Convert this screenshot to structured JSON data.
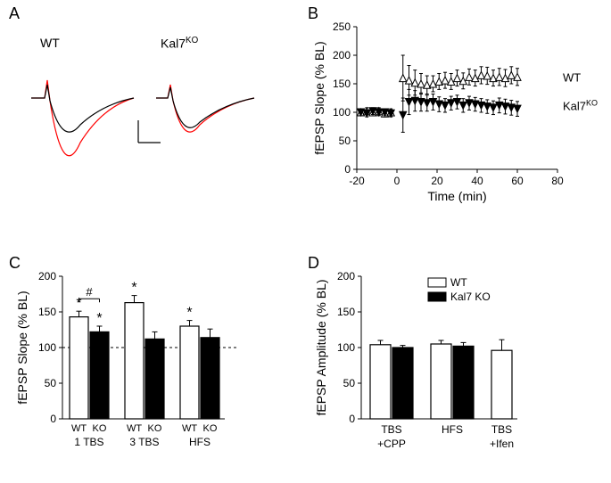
{
  "panelA": {
    "label": "A",
    "wt_label": "WT",
    "ko_label": "Kal7",
    "ko_sup": "KO",
    "trace_black": "#000000",
    "trace_red": "#ff0000",
    "bg": "#ffffff"
  },
  "panelB": {
    "label": "B",
    "type": "scatter",
    "xlabel": "Time (min)",
    "ylabel": "fEPSP Slope (% BL)",
    "xlim": [
      -20,
      80
    ],
    "ylim": [
      0,
      250
    ],
    "xticks": [
      -20,
      0,
      20,
      40,
      60,
      80
    ],
    "yticks": [
      0,
      50,
      100,
      150,
      200,
      250
    ],
    "series_wt_label": "WT",
    "series_ko_label": "Kal7",
    "series_ko_sup": "KO",
    "wt_marker_fill": "#ffffff",
    "wt_marker_stroke": "#000000",
    "ko_marker_fill": "#000000",
    "ko_marker_stroke": "#000000",
    "grid_color": "#000000",
    "wt_points": [
      {
        "x": -18,
        "y": 100,
        "err": 6
      },
      {
        "x": -15,
        "y": 102,
        "err": 6
      },
      {
        "x": -12,
        "y": 100,
        "err": 6
      },
      {
        "x": -9,
        "y": 102,
        "err": 6
      },
      {
        "x": -6,
        "y": 98,
        "err": 6
      },
      {
        "x": -3,
        "y": 100,
        "err": 6
      },
      {
        "x": 3,
        "y": 160,
        "err": 40
      },
      {
        "x": 6,
        "y": 156,
        "err": 26
      },
      {
        "x": 9,
        "y": 152,
        "err": 22
      },
      {
        "x": 12,
        "y": 150,
        "err": 18
      },
      {
        "x": 15,
        "y": 148,
        "err": 16
      },
      {
        "x": 18,
        "y": 150,
        "err": 14
      },
      {
        "x": 21,
        "y": 154,
        "err": 14
      },
      {
        "x": 24,
        "y": 156,
        "err": 14
      },
      {
        "x": 27,
        "y": 154,
        "err": 14
      },
      {
        "x": 30,
        "y": 160,
        "err": 14
      },
      {
        "x": 33,
        "y": 155,
        "err": 14
      },
      {
        "x": 36,
        "y": 162,
        "err": 14
      },
      {
        "x": 39,
        "y": 160,
        "err": 14
      },
      {
        "x": 42,
        "y": 165,
        "err": 15
      },
      {
        "x": 45,
        "y": 164,
        "err": 15
      },
      {
        "x": 48,
        "y": 160,
        "err": 14
      },
      {
        "x": 51,
        "y": 162,
        "err": 15
      },
      {
        "x": 54,
        "y": 160,
        "err": 15
      },
      {
        "x": 57,
        "y": 165,
        "err": 15
      },
      {
        "x": 60,
        "y": 162,
        "err": 15
      }
    ],
    "ko_points": [
      {
        "x": -18,
        "y": 100,
        "err": 6
      },
      {
        "x": -15,
        "y": 98,
        "err": 6
      },
      {
        "x": -12,
        "y": 102,
        "err": 6
      },
      {
        "x": -9,
        "y": 100,
        "err": 6
      },
      {
        "x": -6,
        "y": 100,
        "err": 6
      },
      {
        "x": -3,
        "y": 98,
        "err": 6
      },
      {
        "x": 3,
        "y": 95,
        "err": 30
      },
      {
        "x": 6,
        "y": 118,
        "err": 22
      },
      {
        "x": 9,
        "y": 120,
        "err": 18
      },
      {
        "x": 12,
        "y": 118,
        "err": 16
      },
      {
        "x": 15,
        "y": 116,
        "err": 14
      },
      {
        "x": 18,
        "y": 118,
        "err": 14
      },
      {
        "x": 21,
        "y": 114,
        "err": 13
      },
      {
        "x": 24,
        "y": 112,
        "err": 12
      },
      {
        "x": 27,
        "y": 116,
        "err": 12
      },
      {
        "x": 30,
        "y": 118,
        "err": 12
      },
      {
        "x": 33,
        "y": 112,
        "err": 12
      },
      {
        "x": 36,
        "y": 116,
        "err": 12
      },
      {
        "x": 39,
        "y": 114,
        "err": 12
      },
      {
        "x": 42,
        "y": 112,
        "err": 12
      },
      {
        "x": 45,
        "y": 110,
        "err": 12
      },
      {
        "x": 48,
        "y": 108,
        "err": 12
      },
      {
        "x": 51,
        "y": 112,
        "err": 13
      },
      {
        "x": 54,
        "y": 110,
        "err": 13
      },
      {
        "x": 57,
        "y": 108,
        "err": 13
      },
      {
        "x": 60,
        "y": 106,
        "err": 13
      }
    ]
  },
  "panelC": {
    "label": "C",
    "type": "bar",
    "ylabel": "fEPSP Slope (% BL)",
    "ylim": [
      0,
      200
    ],
    "yticks": [
      0,
      50,
      100,
      150,
      200
    ],
    "groups": [
      "1 TBS",
      "3 TBS",
      "HFS"
    ],
    "bar_labels": [
      "WT",
      "KO",
      "WT",
      "KO",
      "WT",
      "KO"
    ],
    "wt_fill": "#ffffff",
    "wt_stroke": "#000000",
    "ko_fill": "#000000",
    "ko_stroke": "#000000",
    "baseline_dash": "3,3",
    "star": "*",
    "hash": "#",
    "bars": [
      {
        "val": 143,
        "err": 8,
        "fill": "wt",
        "sig": "*"
      },
      {
        "val": 122,
        "err": 8,
        "fill": "ko",
        "sig": "*"
      },
      {
        "val": 163,
        "err": 10,
        "fill": "wt",
        "sig": "*"
      },
      {
        "val": 112,
        "err": 10,
        "fill": "ko",
        "sig": ""
      },
      {
        "val": 130,
        "err": 8,
        "fill": "wt",
        "sig": "*"
      },
      {
        "val": 114,
        "err": 12,
        "fill": "ko",
        "sig": ""
      }
    ]
  },
  "panelD": {
    "label": "D",
    "type": "bar",
    "ylabel": "fEPSP Amplitude (% BL)",
    "ylim": [
      0,
      200
    ],
    "yticks": [
      0,
      50,
      100,
      150,
      200
    ],
    "legend_wt": "WT",
    "legend_ko": "Kal7 KO",
    "wt_fill": "#ffffff",
    "wt_stroke": "#000000",
    "ko_fill": "#000000",
    "ko_stroke": "#000000",
    "group_rows": [
      [
        "TBS",
        "HFS",
        "TBS"
      ],
      [
        "+CPP",
        "",
        "+Ifen"
      ]
    ],
    "bars": [
      {
        "val": 104,
        "err": 6,
        "fill": "wt"
      },
      {
        "val": 100,
        "err": 3,
        "fill": "ko"
      },
      {
        "val": 105,
        "err": 5,
        "fill": "wt"
      },
      {
        "val": 102,
        "err": 5,
        "fill": "ko"
      },
      {
        "val": 96,
        "err": 15,
        "fill": "wt"
      }
    ]
  }
}
